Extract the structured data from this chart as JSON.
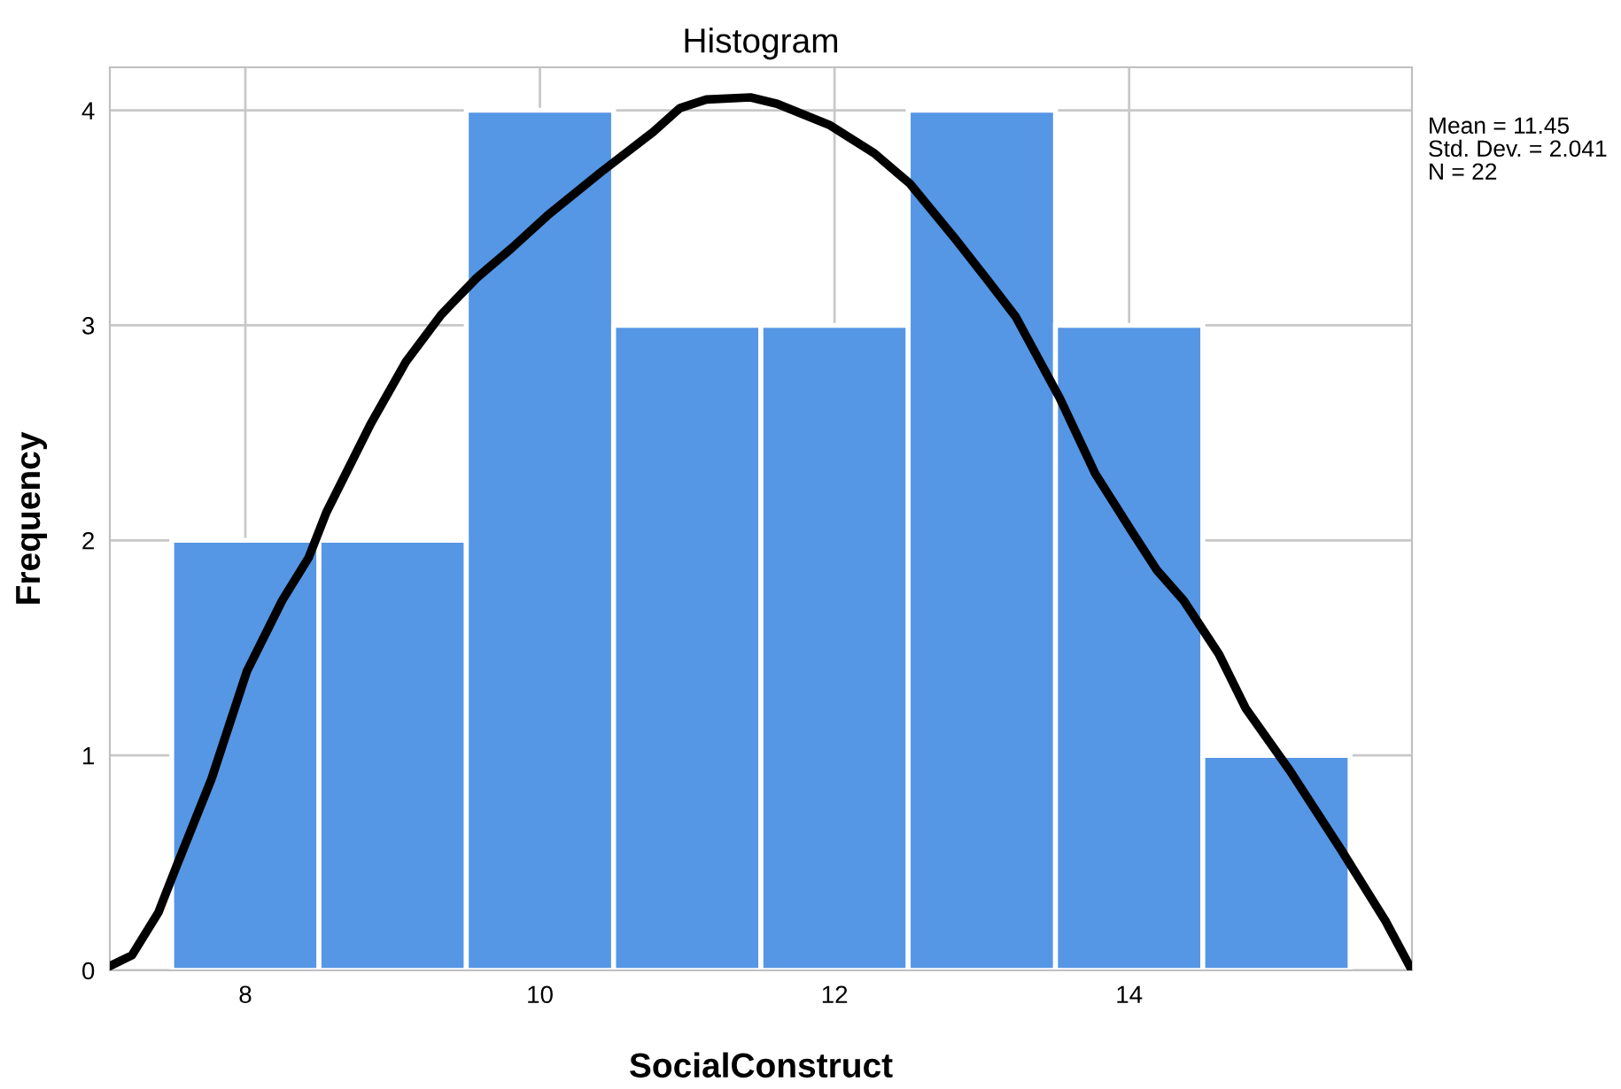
{
  "chart_data": {
    "type": "histogram",
    "title": "Histogram",
    "xlabel": "SocialConstruct",
    "ylabel": "Frequency",
    "bins": [
      7.5,
      8.5,
      9.5,
      10.5,
      11.5,
      12.5,
      13.5,
      14.5,
      15.5
    ],
    "values": [
      2,
      2,
      4,
      3,
      3,
      4,
      3,
      1
    ],
    "color": "#5596e5",
    "series": [
      {
        "type": "line",
        "color": "#000000",
        "x": [
          7.08,
          7.23,
          7.41,
          7.53,
          7.77,
          8.01,
          8.25,
          8.43,
          8.55,
          8.85,
          9.09,
          9.33,
          9.57,
          9.81,
          10.05,
          10.41,
          10.77,
          10.95,
          11.13,
          11.43,
          11.61,
          11.97,
          12.27,
          12.51,
          12.81,
          13.05,
          13.23,
          13.53,
          13.77,
          14.01,
          14.19,
          14.37,
          14.61,
          14.79,
          15.09,
          15.44,
          15.74,
          15.92
        ],
        "values": [
          0.02,
          0.07,
          0.27,
          0.48,
          0.89,
          1.39,
          1.72,
          1.92,
          2.13,
          2.54,
          2.83,
          3.05,
          3.22,
          3.36,
          3.51,
          3.71,
          3.9,
          4.01,
          4.05,
          4.06,
          4.03,
          3.93,
          3.8,
          3.66,
          3.41,
          3.2,
          3.04,
          2.66,
          2.31,
          2.05,
          1.86,
          1.72,
          1.47,
          1.22,
          0.93,
          0.56,
          0.23,
          0
        ]
      }
    ],
    "xlim": [
      7.08,
      15.92
    ],
    "xticks": [
      8,
      10,
      12,
      14
    ],
    "ylim": [
      0,
      4.2
    ],
    "yticks": [
      0,
      1,
      2,
      3,
      4
    ],
    "grid": true,
    "annotations": [
      "Mean = 11.45",
      "Std. Dev. = 2.041",
      "N = 22"
    ]
  }
}
